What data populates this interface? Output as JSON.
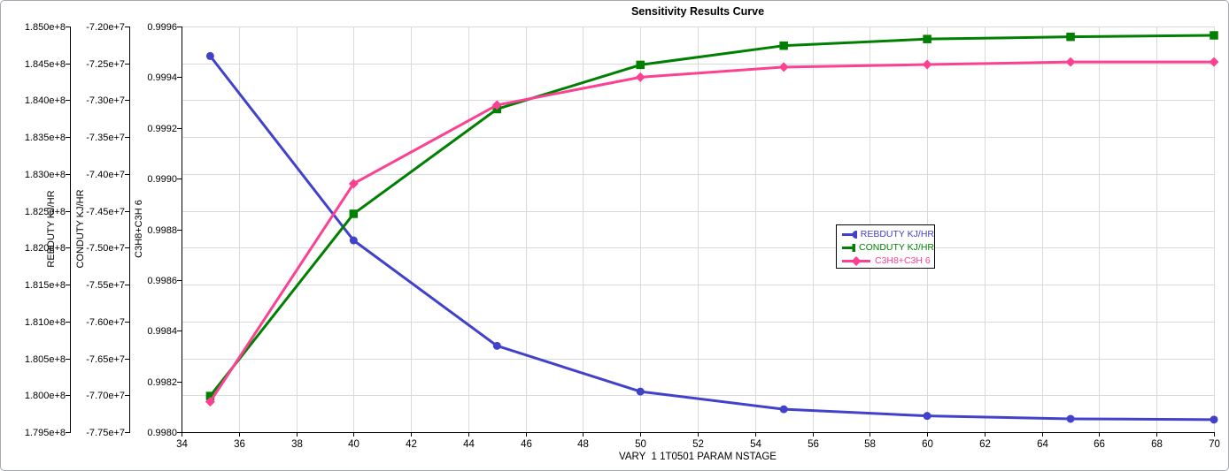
{
  "colors": {
    "background": "#ffffff",
    "frame_border": "#a7a7b2",
    "grid": "#d9d9d9",
    "axis": "#000000",
    "text": "#000000"
  },
  "chart_data": {
    "type": "line",
    "title": "Sensitivity Results Curve",
    "xlabel": "VARY  1 1T0501 PARAM NSTAGE",
    "grid": true,
    "legend_position": "inside-right",
    "x_axis": {
      "min": 34,
      "max": 70,
      "tick_step": 2,
      "tick_labels": [
        "34",
        "36",
        "38",
        "40",
        "42",
        "44",
        "46",
        "48",
        "50",
        "52",
        "54",
        "56",
        "58",
        "60",
        "62",
        "64",
        "66",
        "68",
        "70"
      ]
    },
    "x": [
      35,
      40,
      45,
      50,
      55,
      60,
      65,
      70
    ],
    "series": [
      {
        "name": "REBDUTY KJ/HR",
        "color": "#4141cb",
        "marker": "circle",
        "values": [
          184600000,
          182100000,
          180670000,
          180050000,
          179810000,
          179720000,
          179680000,
          179670000
        ],
        "axis": {
          "min": 179500000,
          "max": 185000000,
          "tick_labels": [
            "1.850e+8",
            "1.845e+8",
            "1.840e+8",
            "1.835e+8",
            "1.830e+8",
            "1.825e+8",
            "1.820e+8",
            "1.815e+8",
            "1.810e+8",
            "1.805e+8",
            "1.800e+8",
            "1.795e+8"
          ]
        }
      },
      {
        "name": "CONDUTY KJ/HR",
        "color": "#008000",
        "marker": "square",
        "values": [
          -77010000,
          -74540000,
          -73120000,
          -72520000,
          -72260000,
          -72170000,
          -72140000,
          -72120000
        ],
        "axis": {
          "min": -77500000,
          "max": -72000000,
          "tick_labels": [
            "-7.20e+7",
            "-7.25e+7",
            "-7.30e+7",
            "-7.35e+7",
            "-7.40e+7",
            "-7.45e+7",
            "-7.50e+7",
            "-7.55e+7",
            "-7.60e+7",
            "-7.65e+7",
            "-7.70e+7",
            "-7.75e+7"
          ]
        }
      },
      {
        "name": "C3H8+C3H 6",
        "color": "#fb4192",
        "marker": "diamond",
        "values": [
          0.99812,
          0.99898,
          0.99929,
          0.9994,
          0.99944,
          0.99945,
          0.99946,
          0.99946
        ],
        "axis": {
          "min": 0.998,
          "max": 0.9996,
          "tick_labels": [
            "0.9996",
            "0.9994",
            "0.9992",
            "0.9990",
            "0.9988",
            "0.9986",
            "0.9984",
            "0.9982",
            "0.9980"
          ]
        }
      }
    ]
  }
}
